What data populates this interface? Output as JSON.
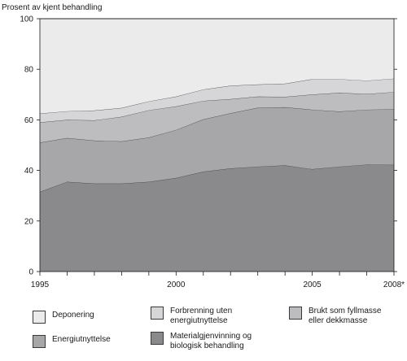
{
  "chart_data": {
    "type": "area",
    "stacked": true,
    "ylabel": "Prosent av kjent behandling",
    "ylim": [
      0,
      100
    ],
    "yticks": [
      0,
      20,
      40,
      60,
      80,
      100
    ],
    "x": [
      1995,
      1996,
      1997,
      1998,
      1999,
      2000,
      2001,
      2002,
      2003,
      2004,
      2005,
      2006,
      2007,
      2008
    ],
    "xtick_labels": [
      {
        "x": 1995,
        "label": "1995"
      },
      {
        "x": 2000,
        "label": "2000"
      },
      {
        "x": 2005,
        "label": "2005"
      },
      {
        "x": 2008,
        "label": "2008*"
      }
    ],
    "grid": false,
    "legend_position": "bottom",
    "series": [
      {
        "name": "Materialgjenvinning og\nbiologisk behandling",
        "color": "#8a8a8c",
        "values": [
          31.5,
          35.5,
          34.8,
          34.8,
          35.5,
          37.0,
          39.5,
          40.8,
          41.5,
          42.0,
          40.5,
          41.5,
          42.3,
          42.2
        ]
      },
      {
        "name": "Energiutnyttelse",
        "color": "#a7a7a9",
        "values": [
          19.5,
          17.3,
          17.0,
          16.7,
          17.5,
          19.0,
          20.7,
          21.8,
          23.3,
          23.0,
          23.5,
          21.8,
          21.7,
          22.0
        ]
      },
      {
        "name": "Brukt som fyllmasse\neller dekkmasse",
        "color": "#bdbdbf",
        "values": [
          8.0,
          7.2,
          8.0,
          9.7,
          10.8,
          9.3,
          7.3,
          5.6,
          4.4,
          4.1,
          6.0,
          7.4,
          6.2,
          6.8
        ]
      },
      {
        "name": "Forbrenning uten\nenergiutnyttelse",
        "color": "#d6d6d8",
        "values": [
          3.5,
          3.4,
          3.9,
          3.5,
          3.5,
          3.9,
          4.5,
          5.3,
          4.8,
          5.2,
          6.1,
          5.4,
          5.3,
          5.3
        ]
      },
      {
        "name": "Deponering",
        "color": "#ebebec",
        "values": [
          37.5,
          36.6,
          36.3,
          35.3,
          32.7,
          30.8,
          28.0,
          26.5,
          26.0,
          25.7,
          23.9,
          23.9,
          24.5,
          23.7
        ]
      }
    ]
  },
  "legend": {
    "items": [
      {
        "label": "Deponering",
        "color": "#ebebec"
      },
      {
        "label": "Forbrenning uten\nenergiutnyttelse",
        "color": "#d6d6d8"
      },
      {
        "label": "Brukt som fyllmasse\neller dekkmasse",
        "color": "#bdbdbf"
      },
      {
        "label": "Energiutnyttelse",
        "color": "#a7a7a9"
      },
      {
        "label": "Materialgjenvinning og\nbiologisk behandling",
        "color": "#8a8a8c"
      }
    ]
  }
}
